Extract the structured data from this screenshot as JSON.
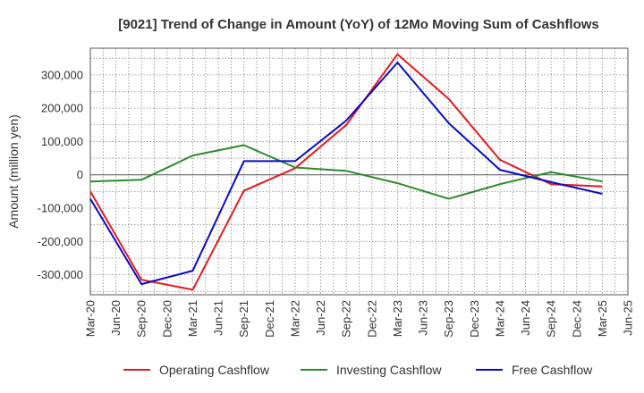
{
  "chart_data": {
    "type": "line",
    "title": "[9021]  Trend of Change in Amount (YoY) of 12Mo Moving Sum of Cashflows",
    "xlabel": "",
    "ylabel": "Amount (million yen)",
    "ylim": [
      -360000,
      380000
    ],
    "yticks": [
      300000,
      200000,
      100000,
      0,
      -100000,
      -200000,
      -300000
    ],
    "ytick_labels": [
      "300,000",
      "200,000",
      "100,000",
      "0",
      "-100,000",
      "-200,000",
      "-300,000"
    ],
    "x_labels": [
      "Mar-20",
      "Jun-20",
      "Sep-20",
      "Dec-20",
      "Mar-21",
      "Jun-21",
      "Sep-21",
      "Dec-21",
      "Mar-22",
      "Jun-22",
      "Sep-22",
      "Dec-22",
      "Mar-23",
      "Jun-23",
      "Sep-23",
      "Dec-23",
      "Mar-24",
      "Jun-24",
      "Sep-24",
      "Dec-24",
      "Mar-25",
      "Jun-25"
    ],
    "grid": true,
    "legend_position": "bottom",
    "series": [
      {
        "name": "Operating Cashflow",
        "color": "#e31a1c",
        "x_index": [
          0,
          2,
          4,
          6,
          8,
          10,
          12,
          14,
          16,
          18,
          20
        ],
        "values": [
          -50000,
          -315000,
          -345000,
          -48000,
          20000,
          150000,
          362000,
          228000,
          45000,
          -28000,
          -35000
        ]
      },
      {
        "name": "Investing Cashflow",
        "color": "#2a8a2a",
        "x_index": [
          0,
          2,
          4,
          6,
          8,
          10,
          12,
          14,
          16,
          18,
          20
        ],
        "values": [
          -20000,
          -15000,
          58000,
          89000,
          22000,
          12000,
          -25000,
          -72000,
          -28000,
          8000,
          -20000
        ]
      },
      {
        "name": "Free Cashflow",
        "color": "#0a0ac8",
        "x_index": [
          0,
          2,
          4,
          6,
          8,
          10,
          12,
          14,
          16,
          18,
          20
        ],
        "values": [
          -72000,
          -328000,
          -288000,
          41000,
          41000,
          163000,
          337000,
          155000,
          15000,
          -22000,
          -57000
        ]
      }
    ]
  }
}
